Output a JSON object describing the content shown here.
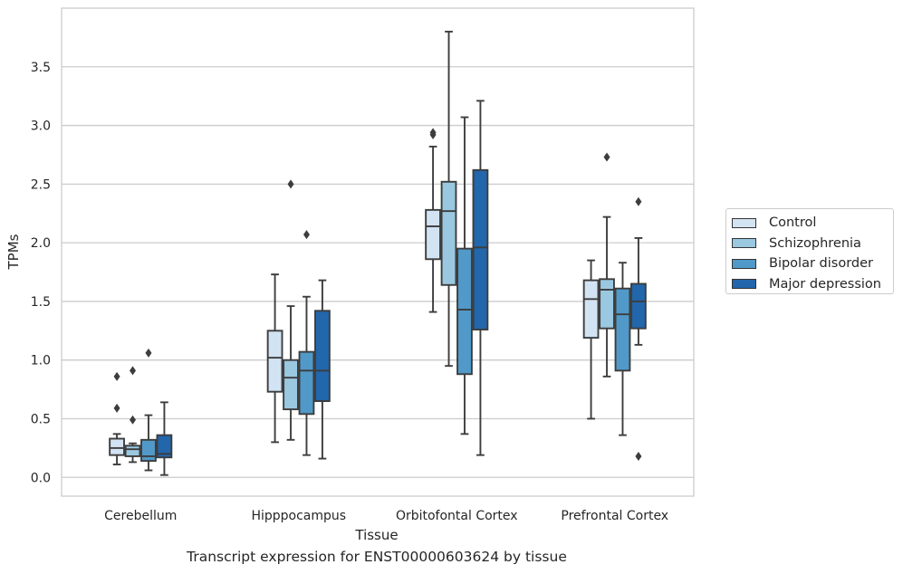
{
  "figure": {
    "caption": "Transcript expression for ENST00000603624 by tissue"
  },
  "legend": {
    "items": [
      {
        "label": "Control",
        "color": "#d2e3f3"
      },
      {
        "label": "Schizophrenia",
        "color": "#9ac8e0"
      },
      {
        "label": "Bipolar disorder",
        "color": "#5199c8"
      },
      {
        "label": "Major depression",
        "color": "#2266ac"
      }
    ]
  },
  "chart_data": {
    "type": "box",
    "xlabel": "Tissue",
    "ylabel": "TPMs",
    "ylim": [
      -0.16,
      4.0
    ],
    "yticks": [
      0.0,
      0.5,
      1.0,
      1.5,
      2.0,
      2.5,
      3.0,
      3.5
    ],
    "ytick_labels": [
      "0.0",
      "0.5",
      "1.0",
      "1.5",
      "2.0",
      "2.5",
      "3.0",
      "3.5"
    ],
    "grid": "horizontal",
    "legend_position": "right",
    "categories": [
      "Cerebellum",
      "Hipppocampus",
      "Orbitofontal Cortex",
      "Prefrontal Cortex"
    ],
    "series": [
      {
        "name": "Control",
        "color": "#d2e3f3",
        "boxes": [
          {
            "min": 0.11,
            "q1": 0.19,
            "median": 0.25,
            "q3": 0.33,
            "max": 0.37,
            "outliers": [
              0.59,
              0.86
            ]
          },
          {
            "min": 0.3,
            "q1": 0.73,
            "median": 1.02,
            "q3": 1.25,
            "max": 1.73,
            "outliers": []
          },
          {
            "min": 1.41,
            "q1": 1.86,
            "median": 2.14,
            "q3": 2.28,
            "max": 2.82,
            "outliers": [
              2.92,
              2.94
            ]
          },
          {
            "min": 0.5,
            "q1": 1.19,
            "median": 1.52,
            "q3": 1.68,
            "max": 1.85,
            "outliers": []
          }
        ]
      },
      {
        "name": "Schizophrenia",
        "color": "#9ac8e0",
        "boxes": [
          {
            "min": 0.13,
            "q1": 0.18,
            "median": 0.24,
            "q3": 0.27,
            "max": 0.29,
            "outliers": [
              0.49,
              0.91
            ]
          },
          {
            "min": 0.32,
            "q1": 0.58,
            "median": 0.85,
            "q3": 1.0,
            "max": 1.46,
            "outliers": [
              2.5
            ]
          },
          {
            "min": 0.95,
            "q1": 1.64,
            "median": 2.27,
            "q3": 2.52,
            "max": 3.8,
            "outliers": []
          },
          {
            "min": 0.86,
            "q1": 1.27,
            "median": 1.6,
            "q3": 1.69,
            "max": 2.22,
            "outliers": [
              2.73
            ]
          }
        ]
      },
      {
        "name": "Bipolar disorder",
        "color": "#5199c8",
        "boxes": [
          {
            "min": 0.06,
            "q1": 0.14,
            "median": 0.18,
            "q3": 0.32,
            "max": 0.53,
            "outliers": [
              1.06
            ]
          },
          {
            "min": 0.19,
            "q1": 0.54,
            "median": 0.91,
            "q3": 1.07,
            "max": 1.54,
            "outliers": [
              2.07
            ]
          },
          {
            "min": 0.37,
            "q1": 0.88,
            "median": 1.43,
            "q3": 1.95,
            "max": 3.07,
            "outliers": []
          },
          {
            "min": 0.36,
            "q1": 0.91,
            "median": 1.39,
            "q3": 1.61,
            "max": 1.83,
            "outliers": []
          }
        ]
      },
      {
        "name": "Major depression",
        "color": "#2266ac",
        "boxes": [
          {
            "min": 0.02,
            "q1": 0.17,
            "median": 0.2,
            "q3": 0.36,
            "max": 0.64,
            "outliers": []
          },
          {
            "min": 0.16,
            "q1": 0.65,
            "median": 0.91,
            "q3": 1.42,
            "max": 1.68,
            "outliers": []
          },
          {
            "min": 0.19,
            "q1": 1.26,
            "median": 1.96,
            "q3": 2.62,
            "max": 3.21,
            "outliers": []
          },
          {
            "min": 1.13,
            "q1": 1.27,
            "median": 1.5,
            "q3": 1.65,
            "max": 2.04,
            "outliers": [
              0.18,
              2.35
            ]
          }
        ]
      }
    ]
  }
}
